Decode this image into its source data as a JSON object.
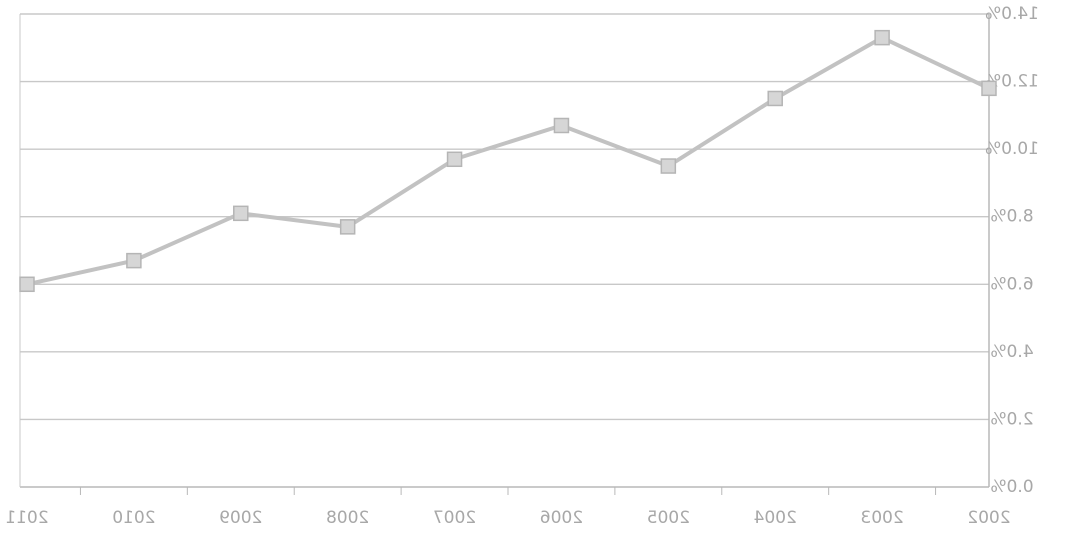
{
  "chart_data": {
    "type": "line",
    "title": "",
    "xlabel": "",
    "ylabel": "",
    "mirrored": true,
    "x_axis_side": "bottom",
    "y_axis_side": "right",
    "x_direction": "right-to-left",
    "categories": [
      "2002",
      "2003",
      "2004",
      "2005",
      "2006",
      "2007",
      "2008",
      "2009",
      "2010",
      "2011"
    ],
    "series": [
      {
        "values": [
          11.8,
          13.3,
          11.5,
          9.5,
          10.7,
          9.7,
          7.7,
          8.1,
          6.7,
          6.0
        ]
      }
    ],
    "y_ticks": [
      "0.0%",
      "2.0%",
      "4.0%",
      "6.0%",
      "8.0%",
      "10.0%",
      "12.0%",
      "14.0%"
    ],
    "ylim": [
      0,
      14
    ],
    "grid": "horizontal",
    "legend": "none",
    "colors": {
      "line": "#c2c2c2",
      "marker": "#b5b5b5",
      "grid": "#c8c8c8",
      "axis": "#b8b8b8",
      "text": "#a8a8a8"
    }
  }
}
